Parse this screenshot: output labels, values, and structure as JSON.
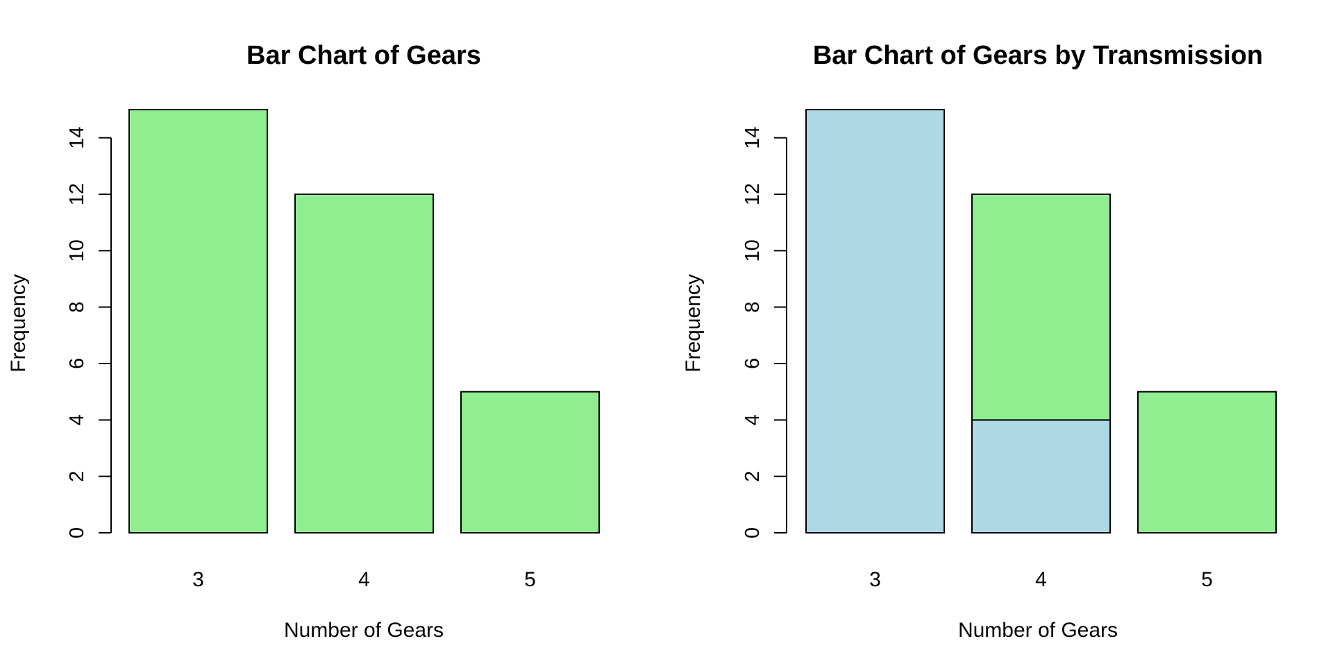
{
  "chart_data": [
    {
      "type": "bar",
      "title": "Bar Chart of Gears",
      "xlabel": "Number of Gears",
      "ylabel": "Frequency",
      "categories": [
        "3",
        "4",
        "5"
      ],
      "values": [
        15,
        12,
        5
      ],
      "ylim": [
        0,
        15
      ],
      "yticks": [
        0,
        2,
        4,
        6,
        8,
        10,
        12,
        14
      ],
      "bar_color": "#90EE90",
      "grid": false
    },
    {
      "type": "bar",
      "stacked": true,
      "title": "Bar Chart of Gears by Transmission",
      "xlabel": "Number of Gears",
      "ylabel": "Frequency",
      "categories": [
        "3",
        "4",
        "5"
      ],
      "series": [
        {
          "values": [
            15,
            4,
            0
          ],
          "color": "#ADD8E6"
        },
        {
          "values": [
            0,
            8,
            5
          ],
          "color": "#90EE90"
        }
      ],
      "ylim": [
        0,
        15
      ],
      "yticks": [
        0,
        2,
        4,
        6,
        8,
        10,
        12,
        14
      ],
      "grid": false
    }
  ]
}
